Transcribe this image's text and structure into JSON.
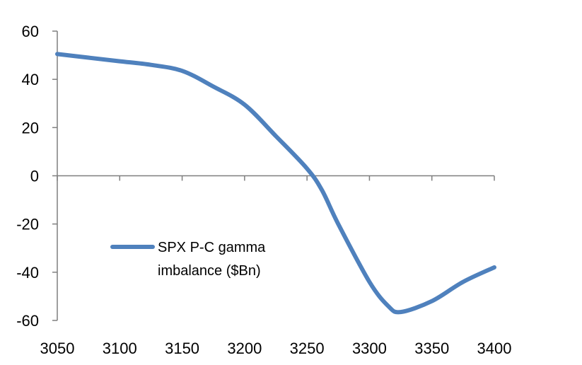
{
  "chart_data": {
    "type": "line",
    "title": "",
    "xlabel": "",
    "ylabel": "",
    "xlim": [
      3050,
      3400
    ],
    "ylim": [
      -60,
      60
    ],
    "x_ticks": [
      3050,
      3100,
      3150,
      3200,
      3250,
      3300,
      3350,
      3400
    ],
    "y_ticks": [
      60,
      40,
      20,
      0,
      -20,
      -40,
      -60
    ],
    "grid": false,
    "legend": {
      "placement": "center-left",
      "lines": [
        "SPX P-C gamma",
        "imbalance ($Bn)"
      ]
    },
    "series": [
      {
        "name": "SPX P-C gamma imbalance ($Bn)",
        "color": "#4f81bd",
        "x": [
          3050,
          3075,
          3100,
          3125,
          3150,
          3175,
          3200,
          3225,
          3250,
          3262,
          3275,
          3300,
          3315,
          3325,
          3350,
          3375,
          3400
        ],
        "y": [
          50.5,
          49,
          47.5,
          46,
          43.5,
          37,
          29.5,
          16.5,
          3,
          -6,
          -20,
          -44,
          -54,
          -56.5,
          -52,
          -44,
          -38
        ]
      }
    ]
  }
}
